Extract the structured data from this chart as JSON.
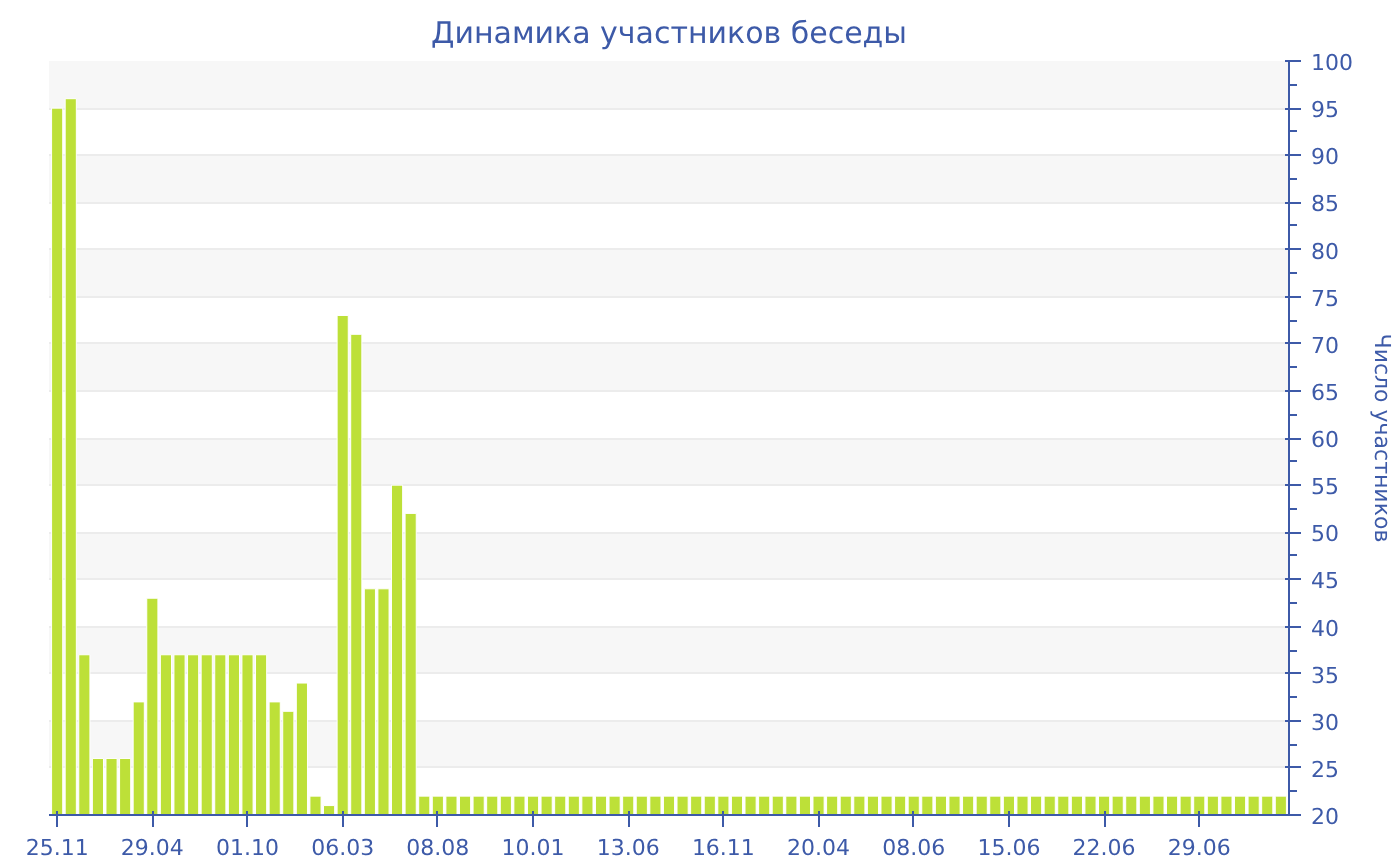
{
  "chart_data": {
    "type": "bar",
    "title": "Динамика участников беседы",
    "ylabel": "Число участников",
    "categories": [
      "25.11",
      null,
      null,
      null,
      null,
      null,
      null,
      "29.04",
      null,
      null,
      null,
      null,
      null,
      null,
      "01.10",
      null,
      null,
      null,
      null,
      null,
      null,
      "06.03",
      null,
      null,
      null,
      null,
      null,
      null,
      "08.08",
      null,
      null,
      null,
      null,
      null,
      null,
      "10.01",
      null,
      null,
      null,
      null,
      null,
      null,
      "13.06",
      null,
      null,
      null,
      null,
      null,
      null,
      "16.11",
      null,
      null,
      null,
      null,
      null,
      null,
      "20.04",
      null,
      null,
      null,
      null,
      null,
      null,
      "08.06",
      null,
      null,
      null,
      null,
      null,
      null,
      "15.06",
      null,
      null,
      null,
      null,
      null,
      null,
      "22.06",
      null,
      null,
      null,
      null,
      null,
      null,
      "29.06",
      null,
      null,
      null,
      null,
      null,
      null
    ],
    "values": [
      95,
      96,
      37,
      26,
      26,
      26,
      32,
      43,
      37,
      37,
      37,
      37,
      37,
      37,
      37,
      37,
      32,
      31,
      34,
      22,
      21,
      73,
      71,
      44,
      44,
      55,
      52,
      22,
      22,
      22,
      22,
      22,
      22,
      22,
      22,
      22,
      22,
      22,
      22,
      22,
      22,
      22,
      22,
      22,
      22,
      22,
      22,
      22,
      22,
      22,
      22,
      22,
      22,
      22,
      22,
      22,
      22,
      22,
      22,
      22,
      22,
      22,
      22,
      22,
      22,
      22,
      22,
      22,
      22,
      22,
      22,
      22,
      22,
      22,
      22,
      22,
      22,
      22,
      22,
      22,
      22,
      22,
      22,
      22,
      22,
      22,
      22,
      22,
      22,
      22,
      22
    ],
    "color": "#bde038",
    "ylim": [
      20,
      100
    ],
    "yticks": [
      20,
      25,
      30,
      35,
      40,
      45,
      50,
      55,
      60,
      65,
      70,
      75,
      80,
      85,
      90,
      95,
      100
    ],
    "grid": "y"
  }
}
